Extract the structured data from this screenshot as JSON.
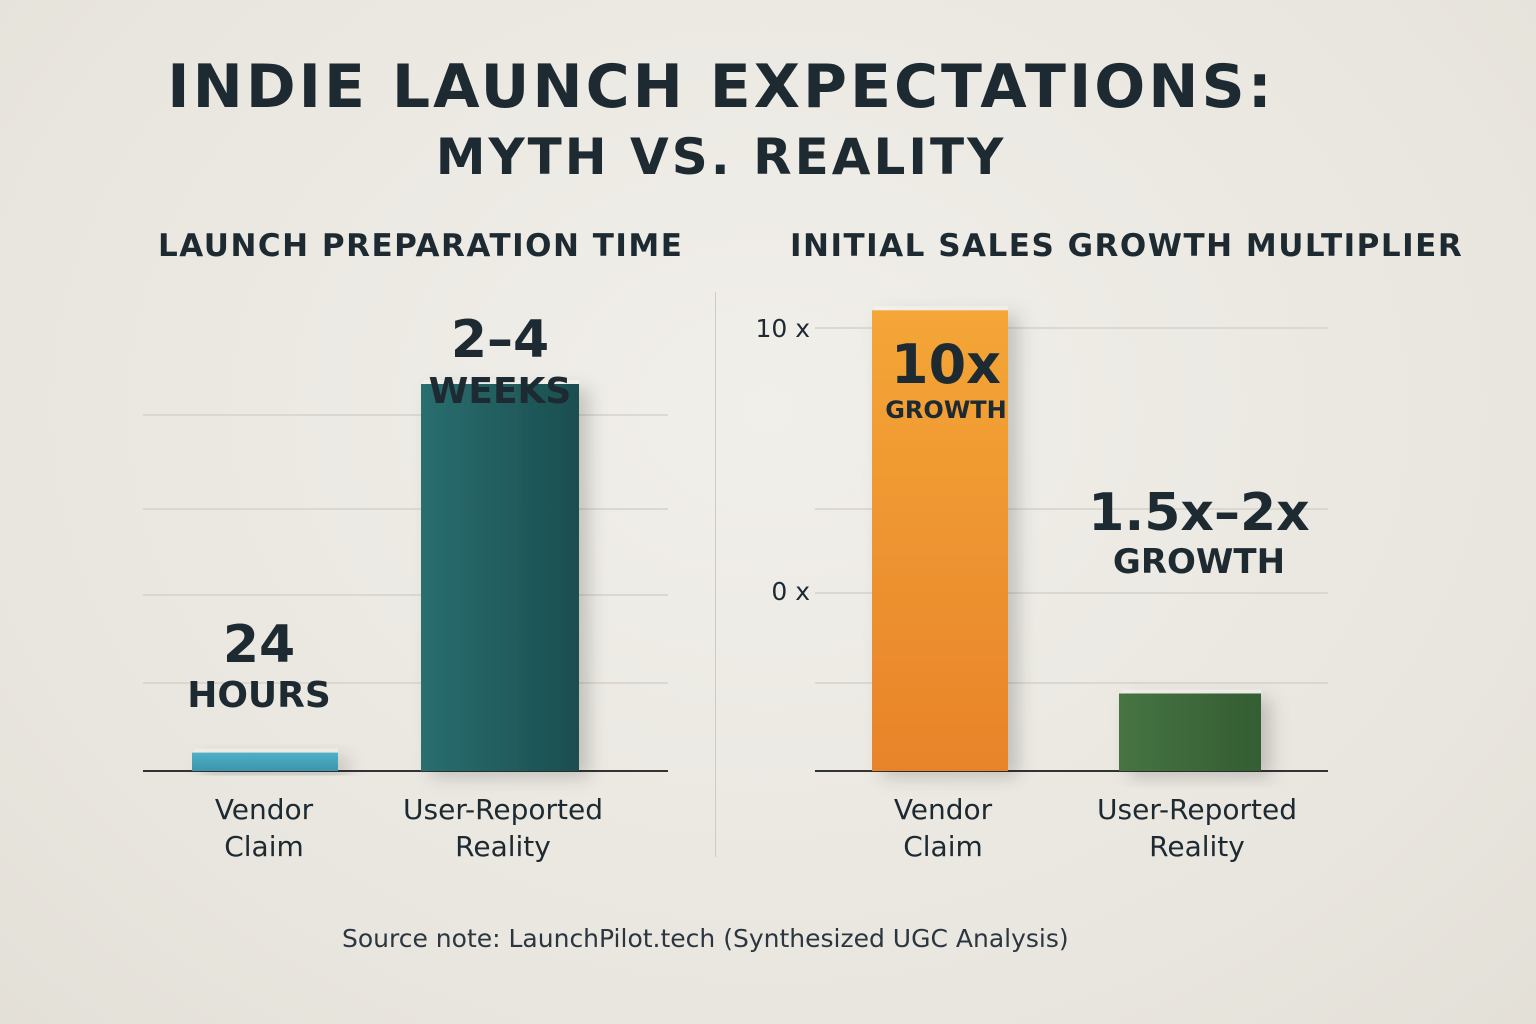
{
  "title": "INDIE LAUNCH EXPECTATIONS:",
  "subtitle": "MYTH VS. REALITY",
  "source_note": "Source note: LaunchPilot.tech (Synthesized UGC Analysis)",
  "colors": {
    "vendor_prep": "#3f9bb3",
    "reality_prep": "#1d5a5b",
    "vendor_growth": "#f0982b",
    "reality_growth": "#3e6a3b",
    "text": "#1e2a32",
    "grid": "#d6d2ca",
    "axis": "#333333"
  },
  "chart_data": [
    {
      "type": "bar",
      "title": "LAUNCH PREPARATION TIME",
      "categories": [
        "Vendor Claim",
        "User-Reported Reality"
      ],
      "category_lines": [
        [
          "Vendor",
          "Claim"
        ],
        [
          "User-Reported",
          "Reality"
        ]
      ],
      "values_hours": [
        24,
        504
      ],
      "value_labels": [
        [
          "24",
          "HOURS"
        ],
        [
          "2–4",
          "WEEKS"
        ]
      ],
      "ylim_hours": [
        0,
        672
      ],
      "grid": true,
      "colors": [
        "#3f9bb3",
        "#1d5a5b"
      ]
    },
    {
      "type": "bar",
      "title": "INITIAL SALES GROWTH MULTIPLIER",
      "categories": [
        "Vendor Claim",
        "User-Reported Reality"
      ],
      "category_lines": [
        [
          "Vendor",
          "Claim"
        ],
        [
          "User-Reported",
          "Reality"
        ]
      ],
      "values": [
        10.4,
        1.75
      ],
      "value_labels": [
        [
          "10x",
          "GROWTH"
        ],
        [
          "1.5x–2x",
          "GROWTH"
        ]
      ],
      "yticks": [
        "10 x",
        "0 x"
      ],
      "grid": true,
      "colors": [
        "#f0982b",
        "#3e6a3b"
      ]
    }
  ]
}
